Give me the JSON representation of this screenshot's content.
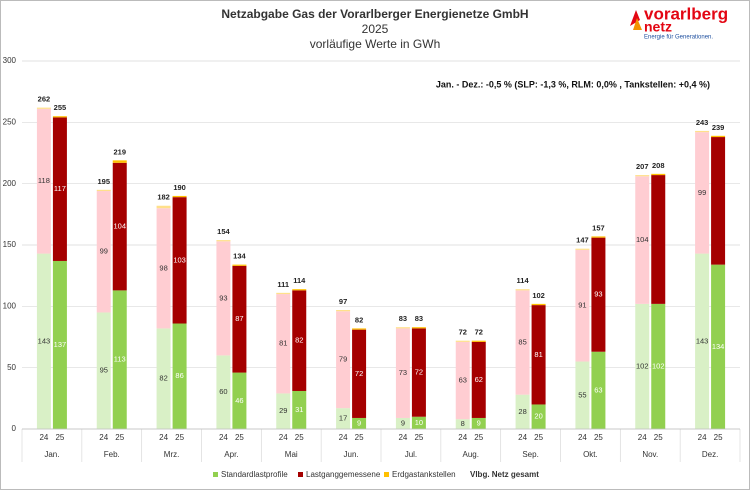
{
  "chart_data": {
    "type": "grouped_stacked_bar",
    "title": "Netzabgabe Gas der Vorarlberger Energienetze GmbH",
    "subtitle": [
      "2025",
      "vorläufige Werte in GWh"
    ],
    "annotation": "Jan. - Dez.: -0,5 % (SLP: -1,3 %, RLM: 0,0% , Tankstellen: +0,4 %)",
    "logo": {
      "brand": "vorarlberg",
      "brand2": "netz",
      "tagline": "Energie für Generationen."
    },
    "categories": [
      "Jan.",
      "Feb.",
      "Mrz.",
      "Apr.",
      "Mai",
      "Jun.",
      "Jul.",
      "Aug.",
      "Sep.",
      "Okt.",
      "Nov.",
      "Dez."
    ],
    "groups": [
      "24",
      "25"
    ],
    "series": [
      {
        "name": "Standardlastprofile",
        "color": "#92d050",
        "light_color": "#d9f0c6",
        "values": [
          [
            143,
            95,
            82,
            60,
            29,
            17,
            9,
            8,
            28,
            55,
            102,
            143
          ],
          [
            137,
            113,
            86,
            46,
            31,
            9,
            10,
            9,
            20,
            63,
            102,
            134
          ]
        ]
      },
      {
        "name": "Lastganggemessene",
        "color": "#a50000",
        "light_color": "#ffcdd2",
        "values": [
          [
            118,
            99,
            98,
            93,
            81,
            79,
            73,
            63,
            85,
            91,
            104,
            99
          ],
          [
            117,
            104,
            103,
            87,
            82,
            72,
            72,
            62,
            81,
            93,
            105,
            104
          ]
        ],
        "value_labels": [
          [
            118,
            99,
            98,
            93,
            81,
            79,
            73,
            63,
            85,
            91,
            104,
            99
          ],
          [
            117,
            104,
            103,
            87,
            82,
            72,
            72,
            62,
            81,
            93,
            null,
            null
          ]
        ]
      },
      {
        "name": "Erdgastankstellen",
        "color": "#ffc000",
        "light_color": "#ffe08a",
        "values": [
          [
            1,
            1,
            2,
            1,
            1,
            1,
            1,
            1,
            1,
            1,
            1,
            1
          ],
          [
            1,
            2,
            1,
            1,
            1,
            1,
            1,
            1,
            1,
            1,
            1,
            1
          ]
        ]
      }
    ],
    "total_name": "Vlbg. Netz gesamt",
    "totals": [
      [
        262,
        195,
        182,
        154,
        111,
        97,
        83,
        72,
        114,
        147,
        207,
        243
      ],
      [
        255,
        219,
        190,
        134,
        114,
        82,
        83,
        72,
        102,
        157,
        208,
        239
      ]
    ],
    "ylim": [
      0,
      300
    ],
    "yticks": [
      0,
      50,
      100,
      150,
      200,
      250,
      300
    ],
    "grid": true
  }
}
